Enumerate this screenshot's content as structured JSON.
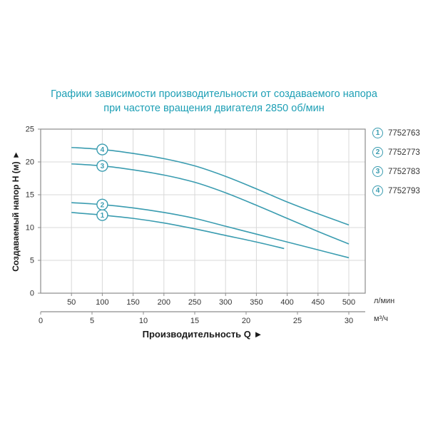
{
  "chart_data": {
    "type": "line",
    "title_line1": "Графики зависимости производительности от создаваемого напора",
    "title_line2": "при частоте вращения двигателя 2850 об/мин",
    "xlabel": "Производительность Q ►",
    "ylabel": "Создаваемый напор H (м) ►",
    "x_axis_primary": {
      "unit": "л/мин",
      "ticks": [
        50,
        100,
        150,
        200,
        250,
        300,
        350,
        400,
        450,
        500
      ],
      "max": 500
    },
    "x_axis_secondary": {
      "unit": "м³/ч",
      "ticks": [
        0,
        5,
        10,
        15,
        20,
        25,
        30
      ],
      "lmin_per_unit": 16.667
    },
    "y_axis": {
      "ticks": [
        0,
        5,
        10,
        15,
        20,
        25
      ],
      "max": 25
    },
    "grid": true,
    "legend_position": "top-right",
    "series": [
      {
        "id": 1,
        "code": "7752763",
        "marker_at_x": 100,
        "points": [
          [
            50,
            12.3
          ],
          [
            100,
            11.9
          ],
          [
            150,
            11.4
          ],
          [
            200,
            10.7
          ],
          [
            250,
            9.8
          ],
          [
            300,
            8.8
          ],
          [
            350,
            7.8
          ],
          [
            395,
            6.8
          ]
        ]
      },
      {
        "id": 2,
        "code": "7752773",
        "marker_at_x": 100,
        "points": [
          [
            50,
            13.8
          ],
          [
            100,
            13.5
          ],
          [
            150,
            13.0
          ],
          [
            200,
            12.3
          ],
          [
            250,
            11.4
          ],
          [
            300,
            10.2
          ],
          [
            350,
            9.0
          ],
          [
            400,
            7.8
          ],
          [
            450,
            6.6
          ],
          [
            500,
            5.4
          ]
        ]
      },
      {
        "id": 3,
        "code": "7752783",
        "marker_at_x": 100,
        "points": [
          [
            50,
            19.7
          ],
          [
            100,
            19.4
          ],
          [
            150,
            18.8
          ],
          [
            200,
            18.0
          ],
          [
            250,
            16.9
          ],
          [
            300,
            15.3
          ],
          [
            350,
            13.4
          ],
          [
            400,
            11.4
          ],
          [
            450,
            9.4
          ],
          [
            500,
            7.5
          ]
        ]
      },
      {
        "id": 4,
        "code": "7752793",
        "marker_at_x": 100,
        "points": [
          [
            50,
            22.2
          ],
          [
            100,
            21.9
          ],
          [
            150,
            21.3
          ],
          [
            200,
            20.5
          ],
          [
            250,
            19.4
          ],
          [
            300,
            17.8
          ],
          [
            350,
            15.9
          ],
          [
            400,
            13.9
          ],
          [
            450,
            12.1
          ],
          [
            500,
            10.4
          ]
        ]
      }
    ],
    "legend": [
      {
        "num": "1",
        "code": "7752763"
      },
      {
        "num": "2",
        "code": "7752773"
      },
      {
        "num": "3",
        "code": "7752783"
      },
      {
        "num": "4",
        "code": "7752793"
      }
    ],
    "colors": {
      "curve": "#3a9cb0",
      "title": "#1d9fb5",
      "grid": "#d8d8d8",
      "axis": "#8c8c8c",
      "text": "#333333"
    }
  }
}
